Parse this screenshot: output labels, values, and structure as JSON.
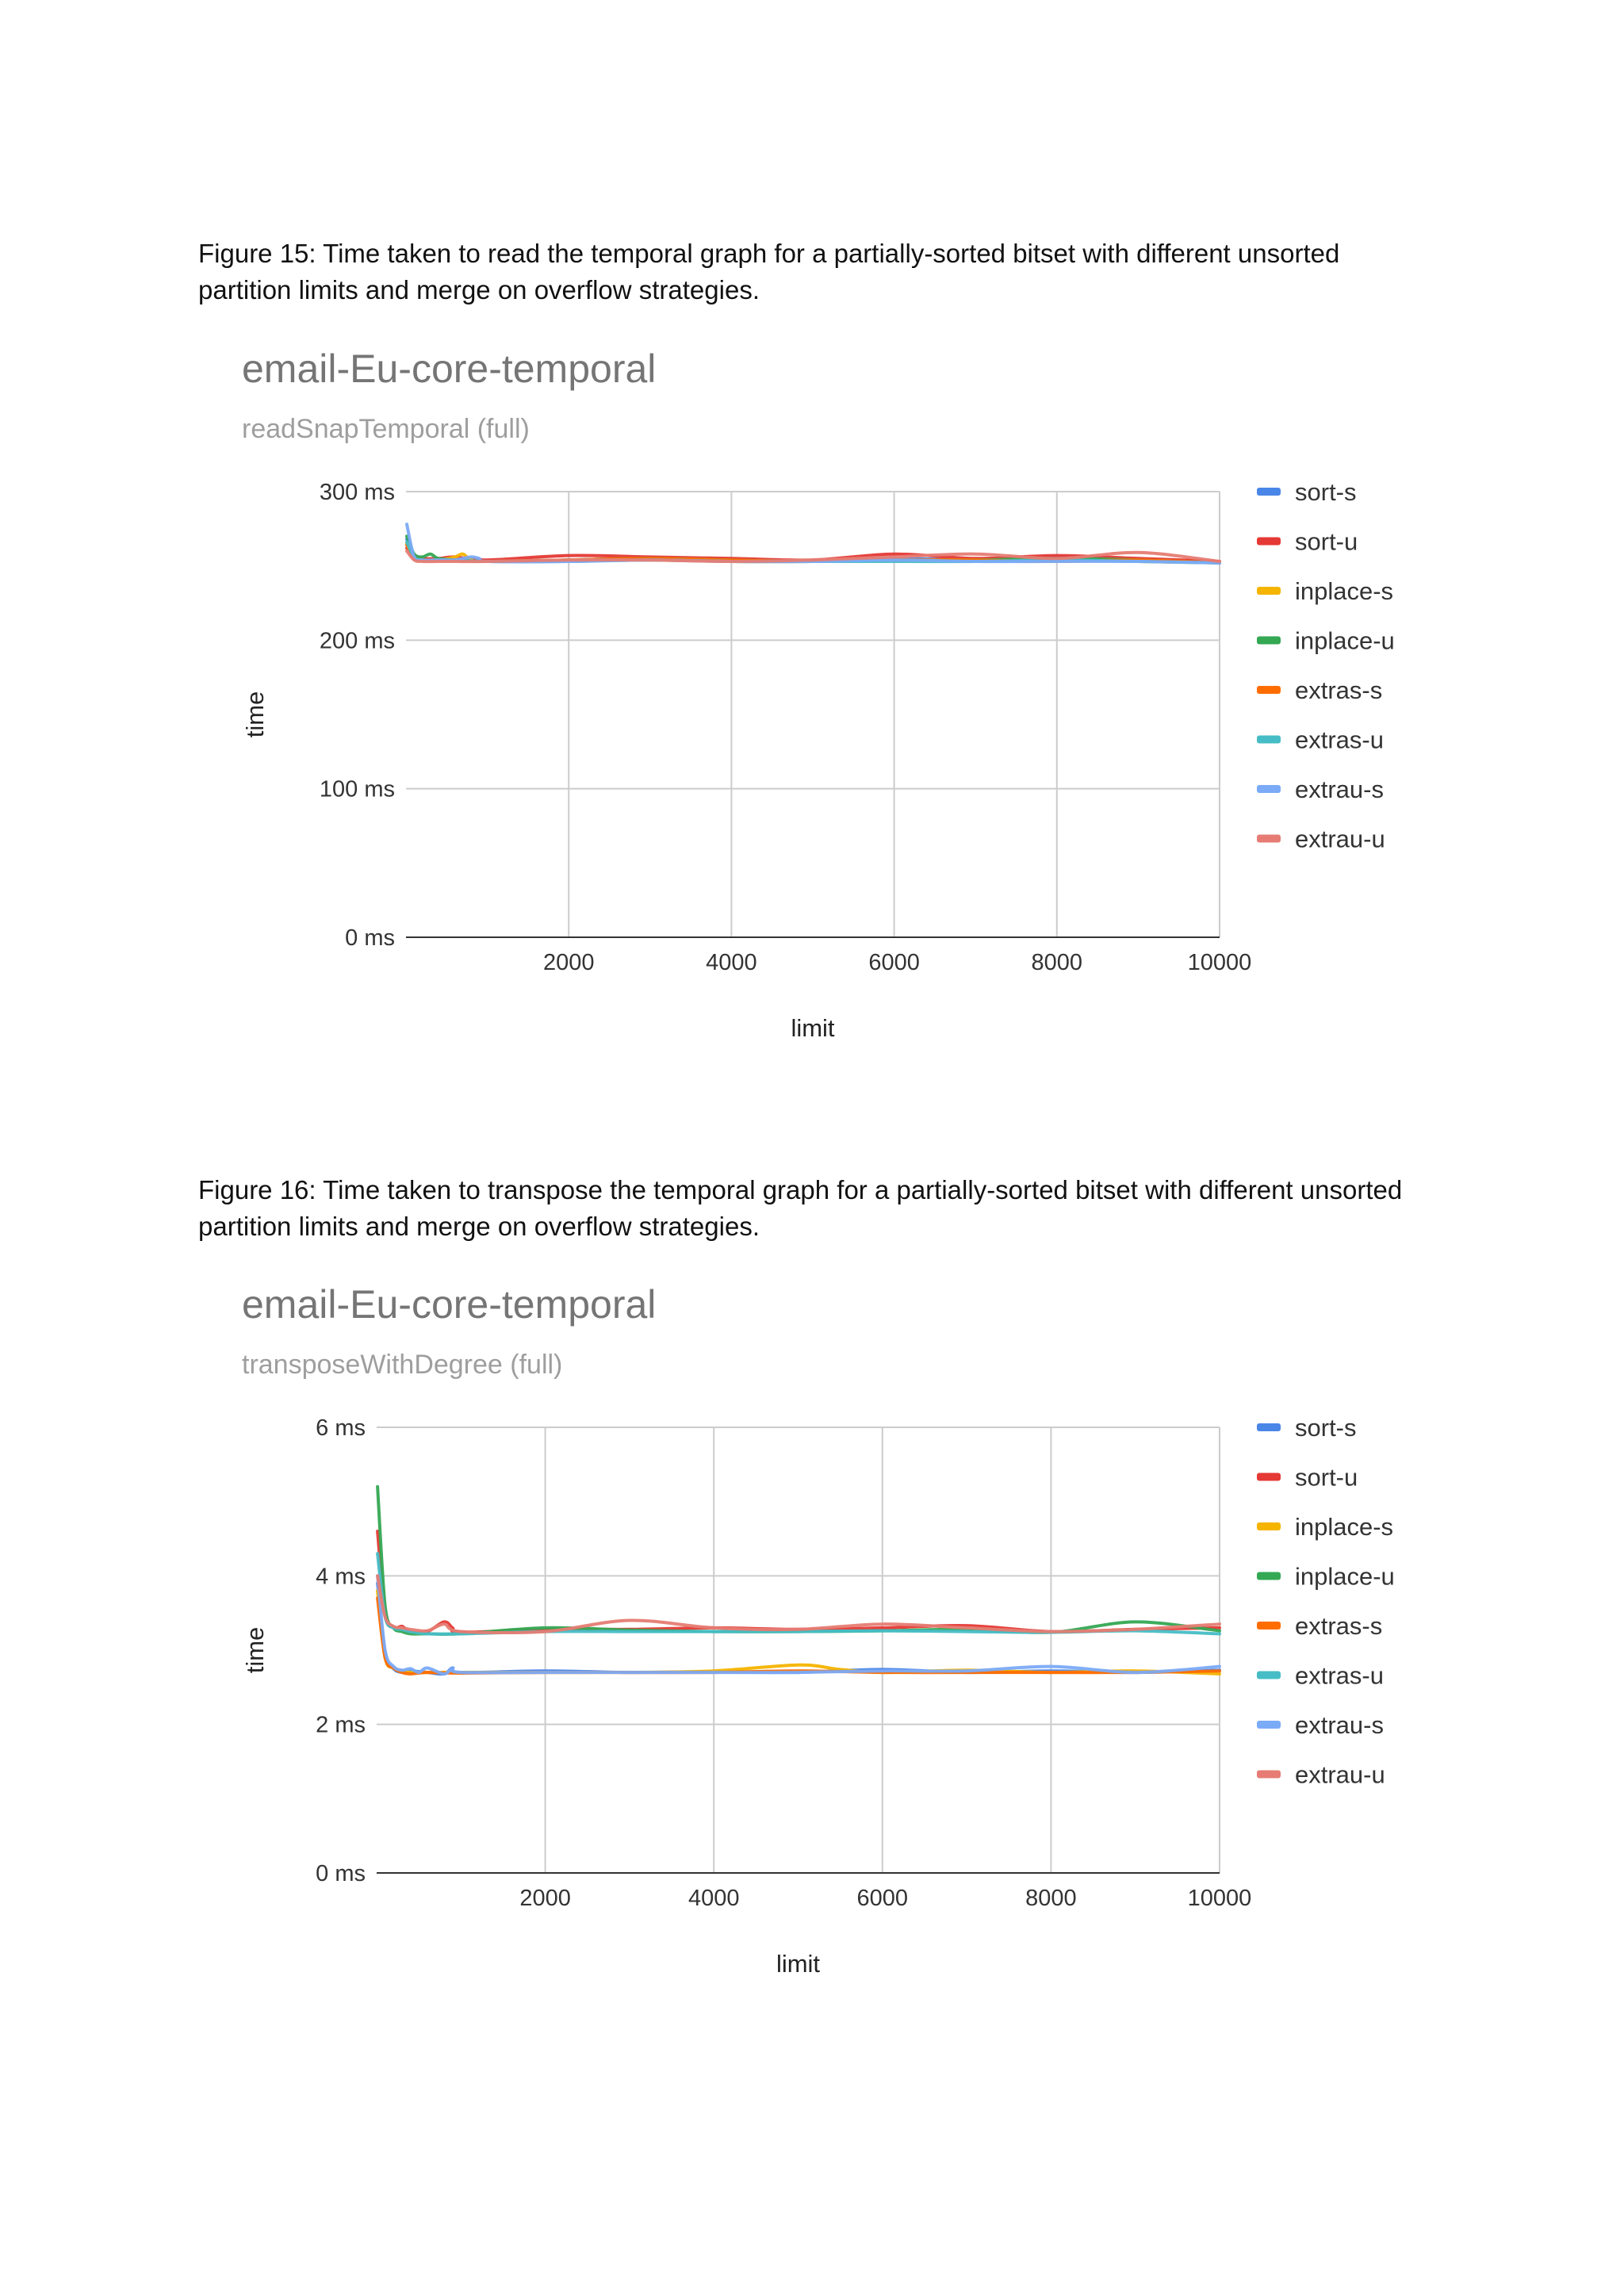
{
  "figures": [
    {
      "caption": "Figure 15: Time taken to read the temporal graph for a partially-sorted bitset with different unsorted partition limits and merge on overflow strategies."
    },
    {
      "caption": "Figure 16: Time taken to transpose the temporal graph for a partially-sorted bitset with different unsorted partition limits and merge on overflow strategies."
    }
  ],
  "chart_data": [
    {
      "type": "line",
      "title": "email-Eu-core-temporal",
      "subtitle": "readSnapTemporal (full)",
      "xlabel": "limit",
      "ylabel": "time",
      "xlim": [
        0,
        10000
      ],
      "ylim": [
        0,
        300
      ],
      "xticks": [
        2000,
        4000,
        6000,
        8000,
        10000
      ],
      "yticks": [
        0,
        100,
        200,
        300
      ],
      "ytick_labels": [
        "0 ms",
        "100 ms",
        "200 ms",
        "300 ms"
      ],
      "grid": true,
      "legend_position": "right",
      "series": [
        {
          "name": "sort-s",
          "color": "#4a86e8",
          "x": [
            10,
            100,
            200,
            400,
            600,
            1000,
            2000,
            3000,
            4000,
            5000,
            6000,
            7000,
            8000,
            9000,
            10000
          ],
          "y": [
            268,
            256,
            254,
            254,
            254,
            253,
            254,
            255,
            254,
            253,
            255,
            254,
            256,
            254,
            252
          ]
        },
        {
          "name": "sort-u",
          "color": "#e53935",
          "x": [
            10,
            100,
            200,
            400,
            600,
            1000,
            2000,
            3000,
            4000,
            5000,
            6000,
            7000,
            8000,
            9000,
            10000
          ],
          "y": [
            262,
            257,
            255,
            255,
            256,
            254,
            257,
            256,
            255,
            254,
            258,
            255,
            257,
            255,
            253
          ]
        },
        {
          "name": "inplace-s",
          "color": "#f4b400",
          "x": [
            10,
            100,
            200,
            400,
            600,
            700,
            800,
            1000,
            2000,
            3000,
            4000,
            5000,
            6000,
            7000,
            8000,
            9000,
            10000
          ],
          "y": [
            265,
            256,
            254,
            254,
            256,
            258,
            254,
            253,
            254,
            254,
            253,
            253,
            254,
            254,
            254,
            253,
            252
          ]
        },
        {
          "name": "inplace-u",
          "color": "#34a853",
          "x": [
            10,
            100,
            200,
            300,
            400,
            600,
            1000,
            2000,
            3000,
            4000,
            5000,
            6000,
            7000,
            8000,
            9000,
            10000
          ],
          "y": [
            270,
            258,
            256,
            258,
            255,
            254,
            253,
            254,
            255,
            254,
            253,
            254,
            254,
            255,
            254,
            252
          ]
        },
        {
          "name": "extras-s",
          "color": "#ff6d01",
          "x": [
            10,
            100,
            200,
            400,
            600,
            1000,
            2000,
            3000,
            4000,
            5000,
            6000,
            7000,
            8000,
            9000,
            10000
          ],
          "y": [
            264,
            255,
            254,
            254,
            254,
            253,
            254,
            255,
            254,
            253,
            254,
            254,
            253,
            254,
            252
          ]
        },
        {
          "name": "extras-u",
          "color": "#46bdc6",
          "x": [
            10,
            100,
            200,
            400,
            600,
            1000,
            2000,
            3000,
            4000,
            5000,
            6000,
            7000,
            8000,
            9000,
            10000
          ],
          "y": [
            266,
            256,
            254,
            254,
            254,
            253,
            253,
            254,
            253,
            253,
            253,
            253,
            254,
            253,
            252
          ]
        },
        {
          "name": "extrau-s",
          "color": "#7baaf7",
          "x": [
            10,
            100,
            200,
            400,
            600,
            800,
            900,
            1000,
            2000,
            3000,
            4000,
            5000,
            6000,
            7000,
            8000,
            9000,
            10000
          ],
          "y": [
            278,
            256,
            254,
            254,
            254,
            256,
            255,
            253,
            253,
            254,
            253,
            253,
            254,
            253,
            253,
            253,
            252
          ]
        },
        {
          "name": "extrau-u",
          "color": "#e67c73",
          "x": [
            10,
            100,
            200,
            400,
            600,
            1000,
            2000,
            3000,
            4000,
            5000,
            6000,
            7000,
            8000,
            9000,
            10000
          ],
          "y": [
            260,
            254,
            253,
            253,
            253,
            253,
            254,
            254,
            253,
            254,
            256,
            258,
            255,
            259,
            253
          ]
        }
      ]
    },
    {
      "type": "line",
      "title": "email-Eu-core-temporal",
      "subtitle": "transposeWithDegree (full)",
      "xlabel": "limit",
      "ylabel": "time",
      "xlim": [
        0,
        10000
      ],
      "ylim": [
        0,
        6
      ],
      "xticks": [
        2000,
        4000,
        6000,
        8000,
        10000
      ],
      "yticks": [
        0,
        2,
        4,
        6
      ],
      "ytick_labels": [
        "0 ms",
        "2 ms",
        "4 ms",
        "6 ms"
      ],
      "grid": true,
      "legend_position": "right",
      "series": [
        {
          "name": "sort-s",
          "color": "#4a86e8",
          "x": [
            10,
            100,
            200,
            300,
            400,
            600,
            800,
            900,
            1000,
            2000,
            3000,
            4000,
            5000,
            6000,
            7000,
            8000,
            9000,
            10000
          ],
          "y": [
            3.9,
            2.95,
            2.75,
            2.7,
            2.72,
            2.7,
            2.68,
            2.76,
            2.7,
            2.72,
            2.7,
            2.71,
            2.7,
            2.74,
            2.7,
            2.72,
            2.7,
            2.73
          ]
        },
        {
          "name": "sort-u",
          "color": "#e53935",
          "x": [
            10,
            100,
            200,
            300,
            400,
            600,
            800,
            900,
            1000,
            2000,
            3000,
            4000,
            5000,
            6000,
            7000,
            8000,
            9000,
            10000
          ],
          "y": [
            4.6,
            3.5,
            3.3,
            3.32,
            3.25,
            3.25,
            3.38,
            3.3,
            3.24,
            3.28,
            3.28,
            3.3,
            3.28,
            3.3,
            3.33,
            3.25,
            3.28,
            3.3
          ]
        },
        {
          "name": "inplace-s",
          "color": "#f4b400",
          "x": [
            10,
            100,
            200,
            300,
            400,
            600,
            1000,
            2000,
            3000,
            4000,
            5000,
            5500,
            6000,
            7000,
            8000,
            9000,
            10000
          ],
          "y": [
            3.8,
            2.9,
            2.76,
            2.72,
            2.7,
            2.7,
            2.7,
            2.7,
            2.7,
            2.72,
            2.8,
            2.74,
            2.7,
            2.73,
            2.7,
            2.72,
            2.68
          ]
        },
        {
          "name": "inplace-u",
          "color": "#34a853",
          "x": [
            10,
            100,
            200,
            300,
            400,
            600,
            1000,
            2000,
            3000,
            4000,
            5000,
            6000,
            7000,
            8000,
            9000,
            10000
          ],
          "y": [
            5.2,
            3.6,
            3.3,
            3.25,
            3.22,
            3.22,
            3.22,
            3.3,
            3.27,
            3.25,
            3.25,
            3.26,
            3.28,
            3.24,
            3.38,
            3.26
          ]
        },
        {
          "name": "extras-s",
          "color": "#ff6d01",
          "x": [
            10,
            100,
            200,
            300,
            400,
            600,
            1000,
            2000,
            3000,
            4000,
            5000,
            6000,
            7000,
            8000,
            9000,
            10000
          ],
          "y": [
            3.7,
            2.9,
            2.76,
            2.7,
            2.68,
            2.7,
            2.69,
            2.7,
            2.7,
            2.7,
            2.72,
            2.7,
            2.7,
            2.7,
            2.7,
            2.72
          ]
        },
        {
          "name": "extras-u",
          "color": "#46bdc6",
          "x": [
            10,
            100,
            200,
            300,
            400,
            600,
            1000,
            2000,
            3000,
            4000,
            5000,
            6000,
            7000,
            8000,
            9000,
            10000
          ],
          "y": [
            4.3,
            3.45,
            3.3,
            3.28,
            3.25,
            3.22,
            3.22,
            3.25,
            3.25,
            3.25,
            3.25,
            3.26,
            3.25,
            3.24,
            3.26,
            3.22
          ]
        },
        {
          "name": "extrau-s",
          "color": "#7baaf7",
          "x": [
            10,
            100,
            200,
            300,
            400,
            500,
            600,
            800,
            900,
            1000,
            2000,
            3000,
            4000,
            5000,
            6000,
            7000,
            8000,
            9000,
            10000
          ],
          "y": [
            4.0,
            3.0,
            2.78,
            2.73,
            2.75,
            2.7,
            2.76,
            2.68,
            2.75,
            2.7,
            2.7,
            2.7,
            2.7,
            2.7,
            2.72,
            2.72,
            2.78,
            2.7,
            2.78
          ]
        },
        {
          "name": "extrau-u",
          "color": "#e67c73",
          "x": [
            10,
            100,
            200,
            300,
            400,
            600,
            800,
            1000,
            2000,
            3000,
            4000,
            5000,
            6000,
            7000,
            8000,
            9000,
            10000
          ],
          "y": [
            4.0,
            3.45,
            3.32,
            3.3,
            3.28,
            3.26,
            3.35,
            3.25,
            3.25,
            3.4,
            3.3,
            3.28,
            3.35,
            3.3,
            3.25,
            3.28,
            3.35
          ]
        }
      ]
    }
  ]
}
